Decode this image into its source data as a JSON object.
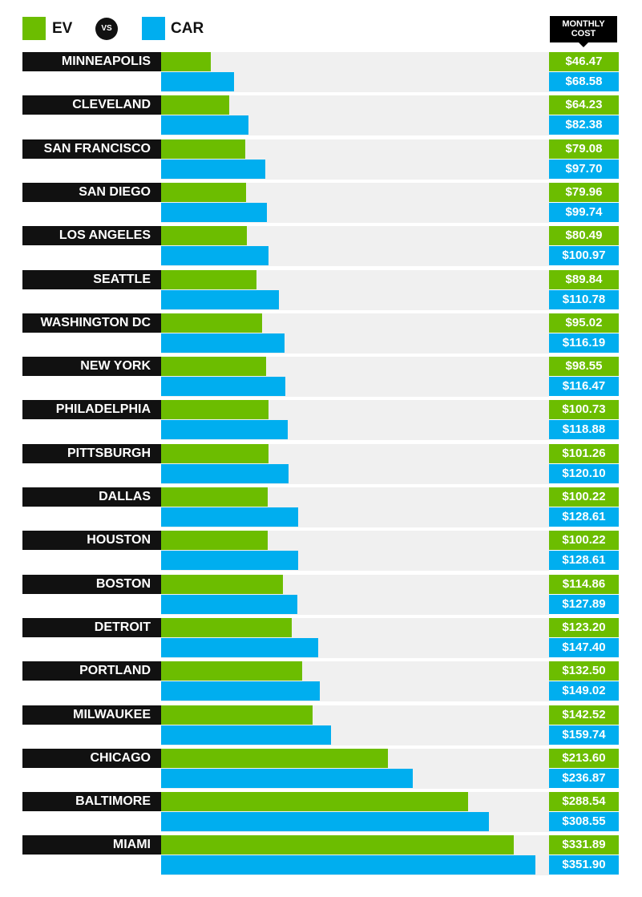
{
  "legend": {
    "ev_label": "EV",
    "vs_label": "VS",
    "car_label": "CAR"
  },
  "header": {
    "monthly_cost_line1": "MONTHLY",
    "monthly_cost_line2": "COST"
  },
  "colors": {
    "ev": "#6cbd00",
    "car": "#00aeef",
    "city_label_bg": "#111111",
    "track_bg": "#f0f0f0"
  },
  "chart_data": {
    "type": "bar",
    "orientation": "horizontal",
    "categories": [
      "MINNEAPOLIS",
      "CLEVELAND",
      "SAN FRANCISCO",
      "SAN DIEGO",
      "LOS ANGELES",
      "SEATTLE",
      "WASHINGTON DC",
      "NEW YORK",
      "PHILADELPHIA",
      "PITTSBURGH",
      "DALLAS",
      "HOUSTON",
      "BOSTON",
      "DETROIT",
      "PORTLAND",
      "MILWAUKEE",
      "CHICAGO",
      "BALTIMORE",
      "MIAMI"
    ],
    "series": [
      {
        "name": "EV",
        "values": [
          46.47,
          64.23,
          79.08,
          79.96,
          80.49,
          89.84,
          95.02,
          98.55,
          100.73,
          101.26,
          100.22,
          100.22,
          114.86,
          123.2,
          132.5,
          142.52,
          213.6,
          288.54,
          331.89
        ],
        "labels": [
          "$46.47",
          "$64.23",
          "$79.08",
          "$79.96",
          "$80.49",
          "$89.84",
          "$95.02",
          "$98.55",
          "$100.73",
          "$101.26",
          "$100.22",
          "$100.22",
          "$114.86",
          "$123.20",
          "$132.50",
          "$142.52",
          "$213.60",
          "$288.54",
          "$331.89"
        ]
      },
      {
        "name": "CAR",
        "values": [
          68.58,
          82.38,
          97.7,
          99.74,
          100.97,
          110.78,
          116.19,
          116.47,
          118.88,
          120.1,
          128.61,
          128.61,
          127.89,
          147.4,
          149.02,
          159.74,
          236.87,
          308.55,
          351.9
        ],
        "labels": [
          "$68.58",
          "$82.38",
          "$97.70",
          "$99.74",
          "$100.97",
          "$110.78",
          "$116.19",
          "$116.47",
          "$118.88",
          "$120.10",
          "$128.61",
          "$128.61",
          "$127.89",
          "$147.40",
          "$149.02",
          "$159.74",
          "$236.87",
          "$308.55",
          "$351.90"
        ]
      }
    ],
    "xlim": [
      0,
      352
    ]
  }
}
